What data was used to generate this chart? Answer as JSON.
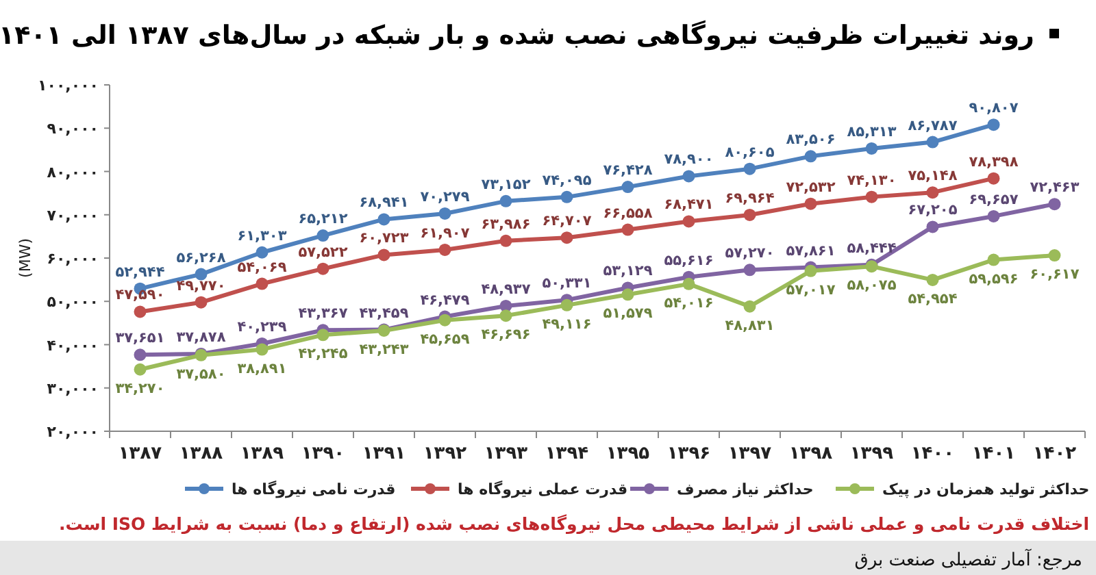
{
  "chart_data": {
    "type": "line",
    "title": "روند تغییرات ظرفیت نیروگاهی نصب شده و بار شبکه در سال‌های ۱۳۸۷ الی ۱۴۰۱",
    "ylabel": "(MW)",
    "categories": [
      "۱۳۸۷",
      "۱۳۸۸",
      "۱۳۸۹",
      "۱۳۹۰",
      "۱۳۹۱",
      "۱۳۹۲",
      "۱۳۹۳",
      "۱۳۹۴",
      "۱۳۹۵",
      "۱۳۹۶",
      "۱۳۹۷",
      "۱۳۹۸",
      "۱۳۹۹",
      "۱۴۰۰",
      "۱۴۰۱",
      "۱۴۰۲"
    ],
    "series": [
      {
        "name": "قدرت نامی نیروگاه ها",
        "color": "#4f81bd",
        "values": [
          52944,
          56268,
          61303,
          65212,
          68941,
          70279,
          73152,
          74095,
          76428,
          78900,
          80605,
          83506,
          85313,
          86787,
          90807,
          null
        ],
        "value_labels": [
          "۵۲,۹۴۴",
          "۵۶,۲۶۸",
          "۶۱,۳۰۳",
          "۶۵,۲۱۲",
          "۶۸,۹۴۱",
          "۷۰,۲۷۹",
          "۷۳,۱۵۲",
          "۷۴,۰۹۵",
          "۷۶,۴۲۸",
          "۷۸,۹۰۰",
          "۸۰,۶۰۵",
          "۸۳,۵۰۶",
          "۸۵,۳۱۳",
          "۸۶,۷۸۷",
          "۹۰,۸۰۷",
          null
        ]
      },
      {
        "name": "قدرت عملی نیروگاه ها",
        "color": "#c0504d",
        "values": [
          47590,
          49770,
          54069,
          57522,
          60723,
          61907,
          63986,
          64707,
          66558,
          68471,
          69964,
          72532,
          74130,
          75148,
          78398,
          null
        ],
        "value_labels": [
          "۴۷,۵۹۰",
          "۴۹,۷۷۰",
          "۵۴,۰۶۹",
          "۵۷,۵۲۲",
          "۶۰,۷۲۳",
          "۶۱,۹۰۷",
          "۶۳,۹۸۶",
          "۶۴,۷۰۷",
          "۶۶,۵۵۸",
          "۶۸,۴۷۱",
          "۶۹,۹۶۴",
          "۷۲,۵۳۲",
          "۷۴,۱۳۰",
          "۷۵,۱۴۸",
          "۷۸,۳۹۸",
          null
        ]
      },
      {
        "name": "حداکثر نیاز مصرف",
        "color": "#8064a2",
        "values": [
          37651,
          37878,
          40239,
          43367,
          43459,
          46479,
          48937,
          50331,
          53129,
          55616,
          57270,
          57861,
          58444,
          67205,
          69657,
          72463
        ],
        "value_labels": [
          "۳۷,۶۵۱",
          "۳۷,۸۷۸",
          "۴۰,۲۳۹",
          "۴۳,۳۶۷",
          "۴۳,۴۵۹",
          "۴۶,۴۷۹",
          "۴۸,۹۳۷",
          "۵۰,۳۳۱",
          "۵۳,۱۲۹",
          "۵۵,۶۱۶",
          "۵۷,۲۷۰",
          "۵۷,۸۶۱",
          "۵۸,۴۴۴",
          "۶۷,۲۰۵",
          "۶۹,۶۵۷",
          "۷۲,۴۶۳"
        ]
      },
      {
        "name": "حداکثر تولید همزمان در پیک",
        "color": "#9bbb59",
        "values": [
          34270,
          37580,
          38891,
          42245,
          43243,
          45659,
          46696,
          49116,
          51579,
          54016,
          48831,
          57017,
          58075,
          54954,
          59596,
          60617
        ],
        "value_labels": [
          "۳۴,۲۷۰",
          "۳۷,۵۸۰",
          "۳۸,۸۹۱",
          "۴۲,۲۴۵",
          "۴۳,۲۴۳",
          "۴۵,۶۵۹",
          "۴۶,۶۹۶",
          "۴۹,۱۱۶",
          "۵۱,۵۷۹",
          "۵۴,۰۱۶",
          "۴۸,۸۳۱",
          "۵۷,۰۱۷",
          "۵۸,۰۷۵",
          "۵۴,۹۵۴",
          "۵۹,۵۹۶",
          "۶۰,۶۱۷"
        ]
      }
    ],
    "ylim": [
      20000,
      100000
    ],
    "yticks": [
      {
        "value": 20000,
        "label": "۲۰,۰۰۰"
      },
      {
        "value": 30000,
        "label": "۳۰,۰۰۰"
      },
      {
        "value": 40000,
        "label": "۴۰,۰۰۰"
      },
      {
        "value": 50000,
        "label": "۵۰,۰۰۰"
      },
      {
        "value": 60000,
        "label": "۶۰,۰۰۰"
      },
      {
        "value": 70000,
        "label": "۷۰,۰۰۰"
      },
      {
        "value": 80000,
        "label": "۸۰,۰۰۰"
      },
      {
        "value": 90000,
        "label": "۹۰,۰۰۰"
      },
      {
        "value": 100000,
        "label": "۱۰۰,۰۰۰"
      }
    ],
    "legend": "bottom",
    "marker": "circle",
    "annotations": [
      "اختلاف قدرت نامی و عملی ناشی از شرایط محیطی محل نیروگاه‌های نصب شده (ارتفاع و دما) نسبت به شرایط ISO است.",
      "مرجع: آمار تفصیلی صنعت برق"
    ]
  }
}
